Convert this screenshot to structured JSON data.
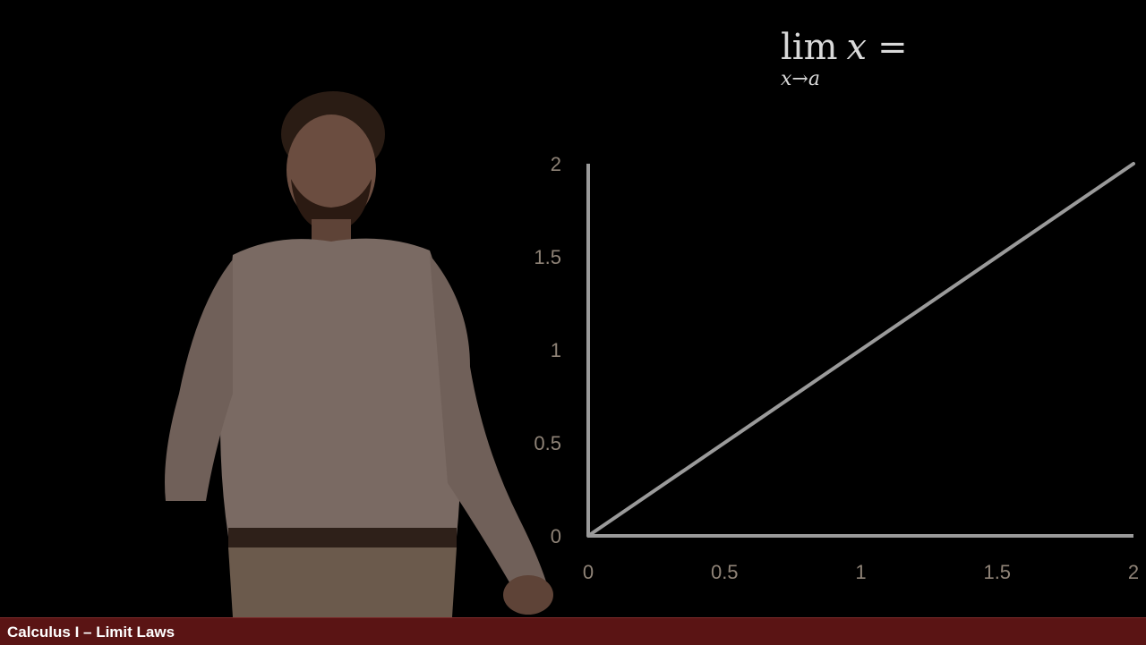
{
  "formula": {
    "lim": "lim",
    "variable": "x",
    "equals": "=",
    "subscript": "x→a"
  },
  "footer": {
    "title": "Calculus I – Limit Laws"
  },
  "colors": {
    "axis": "#9a9a9a",
    "line": "#9a9a9a",
    "tick_label": "#8f8377",
    "footer_bg": "#5a1414"
  },
  "chart_data": {
    "type": "line",
    "title": "",
    "xlabel": "",
    "ylabel": "",
    "xlim": [
      0,
      2
    ],
    "ylim": [
      0,
      2
    ],
    "x_ticks": [
      "0",
      "0.5",
      "1",
      "1.5",
      "2"
    ],
    "y_ticks": [
      "0",
      "0.5",
      "1",
      "1.5",
      "2"
    ],
    "grid": false,
    "series": [
      {
        "x": [
          0,
          2
        ],
        "y": [
          0,
          2
        ]
      }
    ]
  }
}
